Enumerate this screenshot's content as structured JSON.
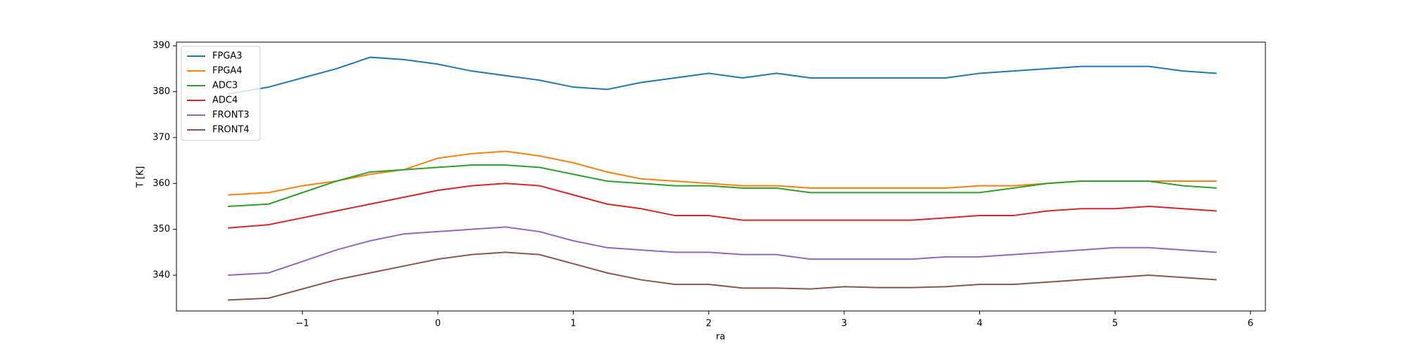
{
  "chart_data": {
    "type": "line",
    "xlabel": "ra",
    "ylabel": "T [K]",
    "x": [
      -1.55,
      -1.25,
      -1.0,
      -0.75,
      -0.5,
      -0.25,
      0,
      0.25,
      0.5,
      0.75,
      1.0,
      1.25,
      1.5,
      1.75,
      2.0,
      2.25,
      2.5,
      2.75,
      3.0,
      3.25,
      3.5,
      3.75,
      4.0,
      4.25,
      4.5,
      4.75,
      5.0,
      5.25,
      5.5,
      5.75
    ],
    "series": [
      {
        "name": "FPGA3",
        "color": "#1f77b4",
        "values": [
          379.5,
          381,
          383,
          385,
          387.5,
          387,
          386,
          384.5,
          383.5,
          382.5,
          381,
          380.5,
          382,
          383,
          384,
          383,
          384,
          383,
          383,
          383,
          383,
          383,
          384,
          384.5,
          385,
          385.5,
          385.5,
          385.5,
          384.5,
          384
        ]
      },
      {
        "name": "FPGA4",
        "color": "#ff7f0e",
        "values": [
          357.5,
          358,
          359.5,
          360.5,
          362,
          363,
          365.5,
          366.5,
          367,
          366,
          364.5,
          362.5,
          361,
          360.5,
          360,
          359.5,
          359.5,
          359,
          359,
          359,
          359,
          359,
          359.5,
          359.5,
          360,
          360.5,
          360.5,
          360.5,
          360.5,
          360.5
        ]
      },
      {
        "name": "ADC3",
        "color": "#2ca02c",
        "values": [
          355,
          355.5,
          358,
          360.5,
          362.5,
          363,
          363.5,
          364,
          364,
          363.5,
          362,
          360.5,
          360,
          359.5,
          359.5,
          359,
          359,
          358,
          358,
          358,
          358,
          358,
          358,
          359,
          360,
          360.5,
          360.5,
          360.5,
          359.5,
          359
        ]
      },
      {
        "name": "ADC4",
        "color": "#d62728",
        "values": [
          350.3,
          351,
          352.5,
          354,
          355.5,
          357,
          358.5,
          359.5,
          360,
          359.5,
          357.5,
          355.5,
          354.5,
          353,
          353,
          352,
          352,
          352,
          352,
          352,
          352,
          352.5,
          353,
          353,
          354,
          354.5,
          354.5,
          355,
          354.5,
          354
        ]
      },
      {
        "name": "FRONT3",
        "color": "#9467bd",
        "values": [
          340,
          340.5,
          343,
          345.5,
          347.5,
          349,
          349.5,
          350,
          350.5,
          349.5,
          347.5,
          346,
          345.5,
          345,
          345,
          344.5,
          344.5,
          343.5,
          343.5,
          343.5,
          343.5,
          344,
          344,
          344.5,
          345,
          345.5,
          346,
          346,
          345.5,
          345
        ]
      },
      {
        "name": "FRONT4",
        "color": "#8c564b",
        "values": [
          334.6,
          335,
          337,
          339,
          340.5,
          342,
          343.5,
          344.5,
          345,
          344.5,
          342.5,
          340.5,
          339,
          338,
          338,
          337.2,
          337.2,
          337,
          337.5,
          337.3,
          337.3,
          337.5,
          338,
          338,
          338.5,
          339,
          339.5,
          340,
          339.5,
          339
        ]
      }
    ],
    "xlim": [
      -1.93,
      6.11
    ],
    "ylim": [
      332.2,
      390.8
    ],
    "xticks": [
      {
        "value": -1,
        "label": "−1"
      },
      0,
      1,
      2,
      3,
      4,
      5,
      6
    ],
    "yticks": [
      340,
      350,
      360,
      370,
      380,
      390
    ],
    "legend": "upper left"
  }
}
